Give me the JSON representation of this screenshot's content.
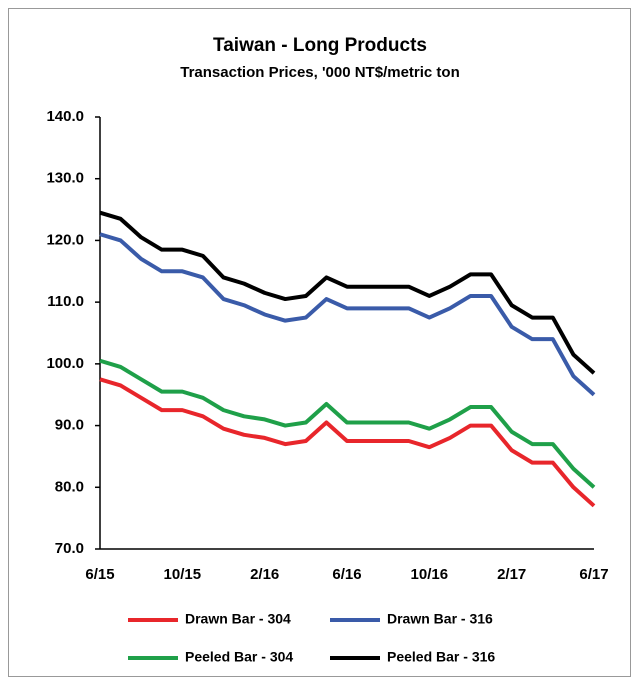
{
  "chart_data": {
    "type": "line",
    "title": "Taiwan - Long Products",
    "subtitle": "Transaction Prices, '000 NT$/metric ton",
    "categories": [
      "6/15",
      null,
      null,
      null,
      "10/15",
      null,
      null,
      null,
      "2/16",
      null,
      null,
      null,
      "6/16",
      null,
      null,
      null,
      "10/16",
      null,
      null,
      null,
      "2/17",
      null,
      null,
      null,
      "6/17"
    ],
    "series": [
      {
        "name": "Drawn Bar - 304",
        "color": "#e8262b",
        "values": [
          97.5,
          96.5,
          94.5,
          92.5,
          92.5,
          91.5,
          89.5,
          88.5,
          88,
          87,
          87.5,
          90.5,
          87.5,
          87.5,
          87.5,
          87.5,
          86.5,
          88,
          90,
          90,
          86,
          84,
          84,
          80,
          77
        ]
      },
      {
        "name": "Drawn Bar - 316",
        "color": "#3a5ba9",
        "values": [
          121,
          120,
          117,
          115,
          115,
          114,
          110.5,
          109.5,
          108,
          107,
          107.5,
          110.5,
          109,
          109,
          109,
          109,
          107.5,
          109,
          111,
          111,
          106,
          104,
          104,
          98,
          95
        ]
      },
      {
        "name": "Peeled Bar - 304",
        "color": "#1fa049",
        "values": [
          100.5,
          99.5,
          97.5,
          95.5,
          95.5,
          94.5,
          92.5,
          91.5,
          91,
          90,
          90.5,
          93.5,
          90.5,
          90.5,
          90.5,
          90.5,
          89.5,
          91,
          93,
          93,
          89,
          87,
          87,
          83,
          80
        ]
      },
      {
        "name": "Peeled Bar - 316",
        "color": "#000000",
        "values": [
          124.5,
          123.5,
          120.5,
          118.5,
          118.5,
          117.5,
          114,
          113,
          111.5,
          110.5,
          111,
          114,
          112.5,
          112.5,
          112.5,
          112.5,
          111,
          112.5,
          114.5,
          114.5,
          109.5,
          107.5,
          107.5,
          101.5,
          98.5
        ]
      }
    ],
    "ylim": [
      70,
      140
    ],
    "yticks": [
      {
        "value": 70,
        "label": "70.0"
      },
      {
        "value": 80,
        "label": "80.0"
      },
      {
        "value": 90,
        "label": "90.0"
      },
      {
        "value": 100,
        "label": "100.0"
      },
      {
        "value": 110,
        "label": "110.0"
      },
      {
        "value": 120,
        "label": "120.0"
      },
      {
        "value": 130,
        "label": "130.0"
      },
      {
        "value": 140,
        "label": "140.0"
      }
    ],
    "grid": false,
    "legend": "bottom"
  }
}
